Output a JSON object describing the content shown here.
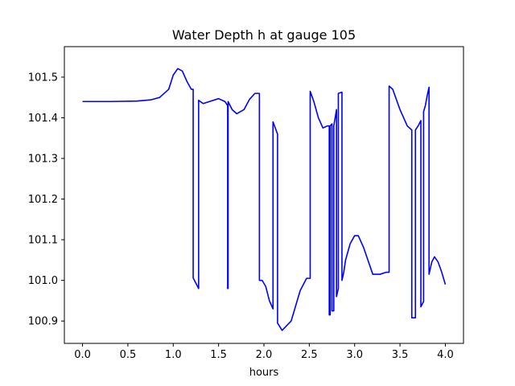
{
  "chart_data": {
    "type": "line",
    "title": "Water Depth h at gauge 105",
    "xlabel": "hours",
    "ylabel": "",
    "xlim": [
      -0.2,
      4.2
    ],
    "ylim": [
      100.845,
      101.575
    ],
    "xticks": [
      0.0,
      0.5,
      1.0,
      1.5,
      2.0,
      2.5,
      3.0,
      3.5,
      4.0
    ],
    "xtick_labels": [
      "0.0",
      "0.5",
      "1.0",
      "1.5",
      "2.0",
      "2.5",
      "3.0",
      "3.5",
      "4.0"
    ],
    "yticks": [
      100.9,
      101.0,
      101.1,
      101.2,
      101.3,
      101.4,
      101.5
    ],
    "ytick_labels": [
      "100.9",
      "101.0",
      "101.1",
      "101.2",
      "101.3",
      "101.4",
      "101.5"
    ],
    "grid": false,
    "series": [
      {
        "color": "#0000ff",
        "x": [
          0.0,
          0.3,
          0.6,
          0.75,
          0.85,
          0.95,
          1.0,
          1.05,
          1.1,
          1.15,
          1.2,
          1.22,
          1.22,
          1.28,
          1.28,
          1.33,
          1.4,
          1.5,
          1.57,
          1.6,
          1.6,
          1.605,
          1.605,
          1.65,
          1.7,
          1.78,
          1.84,
          1.9,
          1.95,
          1.95,
          1.98,
          2.02,
          2.06,
          2.1,
          2.1,
          2.15,
          2.15,
          2.2,
          2.3,
          2.4,
          2.47,
          2.51,
          2.51,
          2.55,
          2.6,
          2.65,
          2.7,
          2.72,
          2.72,
          2.73,
          2.73,
          2.75,
          2.75,
          2.77,
          2.77,
          2.8,
          2.8,
          2.82,
          2.82,
          2.86,
          2.86,
          2.88,
          2.9,
          2.95,
          3.0,
          3.04,
          3.1,
          3.2,
          3.28,
          3.35,
          3.38,
          3.38,
          3.42,
          3.5,
          3.58,
          3.63,
          3.63,
          3.67,
          3.67,
          3.7,
          3.73,
          3.73,
          3.76,
          3.76,
          3.78,
          3.8,
          3.82,
          3.82,
          3.85,
          3.88,
          3.92,
          3.96,
          4.0
        ],
        "y": [
          101.44,
          101.44,
          101.441,
          101.444,
          101.45,
          101.47,
          101.505,
          101.521,
          101.515,
          101.49,
          101.47,
          101.47,
          101.006,
          100.98,
          101.443,
          101.435,
          101.44,
          101.447,
          101.44,
          101.43,
          100.98,
          100.98,
          101.44,
          101.42,
          101.41,
          101.42,
          101.445,
          101.46,
          101.46,
          101.0,
          101.0,
          100.985,
          100.95,
          100.93,
          101.39,
          101.36,
          100.895,
          100.877,
          100.9,
          100.975,
          101.005,
          101.005,
          101.465,
          101.44,
          101.4,
          101.375,
          101.38,
          101.38,
          100.915,
          100.915,
          101.38,
          101.385,
          100.925,
          100.925,
          101.38,
          101.42,
          100.96,
          100.98,
          101.46,
          101.463,
          101.0,
          101.02,
          101.05,
          101.09,
          101.11,
          101.11,
          101.08,
          101.015,
          101.015,
          101.02,
          101.02,
          101.478,
          101.47,
          101.42,
          101.38,
          101.37,
          100.908,
          100.908,
          101.37,
          101.38,
          101.393,
          100.935,
          100.948,
          101.415,
          101.43,
          101.455,
          101.475,
          101.015,
          101.045,
          101.058,
          101.045,
          101.02,
          100.99
        ]
      }
    ]
  }
}
